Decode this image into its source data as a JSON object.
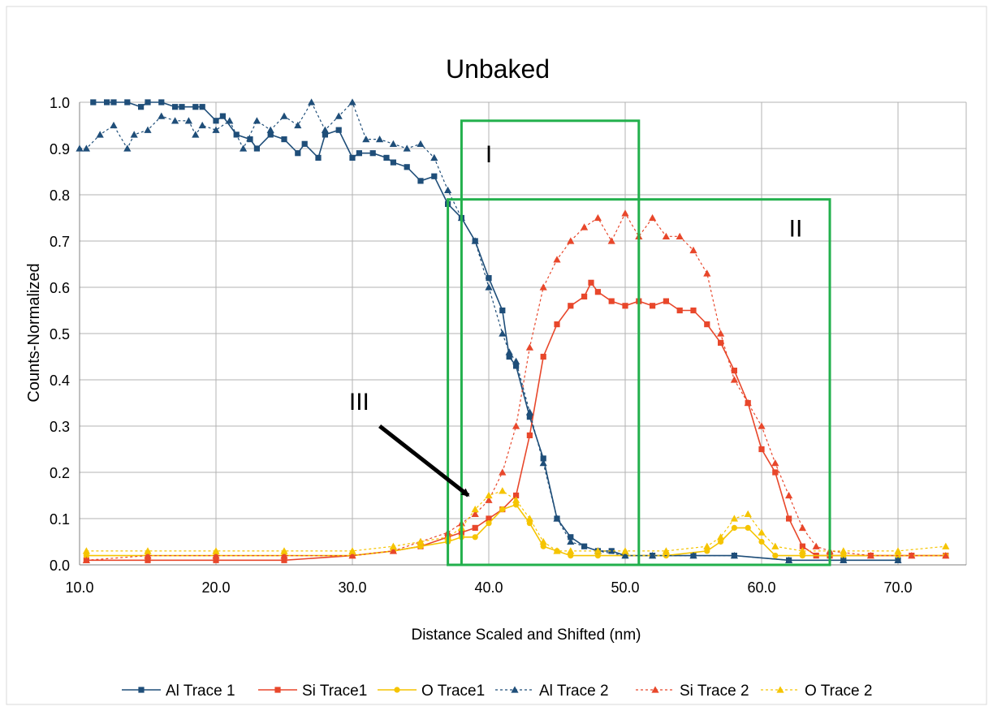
{
  "chart_data": {
    "type": "line",
    "title": "Unbaked",
    "xlabel": "Distance Scaled and Shifted (nm)",
    "ylabel": "Counts-Normalized",
    "xlim": [
      10.0,
      75.0
    ],
    "ylim": [
      0.0,
      1.0
    ],
    "xticks": [
      "10.0",
      "20.0",
      "30.0",
      "40.0",
      "50.0",
      "60.0",
      "70.0"
    ],
    "yticks": [
      "0.0",
      "0.1",
      "0.2",
      "0.3",
      "0.4",
      "0.5",
      "0.6",
      "0.7",
      "0.8",
      "0.9",
      "1.0"
    ],
    "grid": true,
    "legend_position": "bottom",
    "series": [
      {
        "name": "Al Trace 1",
        "color": "#1f4e79",
        "style": "solid",
        "marker": "square",
        "x": [
          11.0,
          12.0,
          12.5,
          13.5,
          14.5,
          15.0,
          16.0,
          17.0,
          17.5,
          18.5,
          19.0,
          20.0,
          20.5,
          21.5,
          22.5,
          23.0,
          24.0,
          25.0,
          26.0,
          26.5,
          27.5,
          28.0,
          29.0,
          30.0,
          30.5,
          31.5,
          32.5,
          33.0,
          34.0,
          35.0,
          36.0,
          37.0,
          38.0,
          39.0,
          40.0,
          41.0,
          41.5,
          42.0,
          43.0,
          44.0,
          45.0,
          46.0,
          47.0,
          48.0,
          49.0,
          50.0,
          52.0,
          55.0,
          58.0,
          62.0,
          66.0,
          70.0
        ],
        "y": [
          1.0,
          1.0,
          1.0,
          1.0,
          0.99,
          1.0,
          1.0,
          0.99,
          0.99,
          0.99,
          0.99,
          0.96,
          0.97,
          0.93,
          0.92,
          0.9,
          0.93,
          0.92,
          0.89,
          0.91,
          0.88,
          0.93,
          0.94,
          0.88,
          0.89,
          0.89,
          0.88,
          0.87,
          0.86,
          0.83,
          0.84,
          0.78,
          0.75,
          0.7,
          0.62,
          0.55,
          0.45,
          0.43,
          0.32,
          0.23,
          0.1,
          0.06,
          0.04,
          0.03,
          0.03,
          0.02,
          0.02,
          0.02,
          0.02,
          0.01,
          0.01,
          0.01
        ]
      },
      {
        "name": "Si Trace1",
        "color": "#e8472b",
        "style": "solid",
        "marker": "square",
        "x": [
          10.5,
          15.0,
          20.0,
          25.0,
          30.0,
          33.0,
          35.0,
          37.0,
          38.0,
          39.0,
          40.0,
          41.0,
          42.0,
          43.0,
          44.0,
          45.0,
          46.0,
          47.0,
          47.5,
          48.0,
          49.0,
          50.0,
          51.0,
          52.0,
          53.0,
          54.0,
          55.0,
          56.0,
          57.0,
          58.0,
          59.0,
          60.0,
          61.0,
          62.0,
          63.0,
          64.0,
          65.0,
          68.0,
          71.0,
          73.5
        ],
        "y": [
          0.01,
          0.01,
          0.01,
          0.01,
          0.02,
          0.03,
          0.04,
          0.06,
          0.07,
          0.08,
          0.1,
          0.12,
          0.15,
          0.28,
          0.45,
          0.52,
          0.56,
          0.58,
          0.61,
          0.59,
          0.57,
          0.56,
          0.57,
          0.56,
          0.57,
          0.55,
          0.55,
          0.52,
          0.48,
          0.42,
          0.35,
          0.25,
          0.2,
          0.1,
          0.04,
          0.02,
          0.02,
          0.02,
          0.02,
          0.02
        ]
      },
      {
        "name": "O Trace1",
        "color": "#f5c400",
        "style": "solid",
        "marker": "circle",
        "x": [
          10.5,
          15.0,
          20.0,
          25.0,
          30.0,
          33.0,
          35.0,
          37.0,
          38.0,
          39.0,
          40.0,
          41.0,
          42.0,
          43.0,
          44.0,
          45.0,
          46.0,
          48.0,
          50.0,
          53.0,
          56.0,
          57.0,
          58.0,
          59.0,
          60.0,
          61.0,
          63.0,
          66.0,
          70.0,
          73.5
        ],
        "y": [
          0.02,
          0.02,
          0.02,
          0.02,
          0.02,
          0.03,
          0.04,
          0.05,
          0.06,
          0.06,
          0.09,
          0.12,
          0.13,
          0.09,
          0.04,
          0.03,
          0.02,
          0.02,
          0.02,
          0.02,
          0.03,
          0.05,
          0.08,
          0.08,
          0.05,
          0.02,
          0.02,
          0.02,
          0.02,
          0.02
        ]
      },
      {
        "name": "Al Trace 2",
        "color": "#1f4e79",
        "style": "dashed",
        "marker": "triangle",
        "x": [
          10.0,
          10.5,
          11.5,
          12.5,
          13.5,
          14.0,
          15.0,
          16.0,
          17.0,
          18.0,
          18.5,
          19.0,
          20.0,
          21.0,
          22.0,
          23.0,
          24.0,
          25.0,
          26.0,
          27.0,
          28.0,
          29.0,
          30.0,
          31.0,
          32.0,
          33.0,
          34.0,
          35.0,
          36.0,
          37.0,
          38.0,
          39.0,
          40.0,
          41.0,
          41.5,
          42.0,
          43.0,
          44.0,
          45.0,
          46.0,
          48.0,
          50.0,
          52.0,
          55.0,
          58.0,
          62.0,
          66.0,
          70.0
        ],
        "y": [
          0.9,
          0.9,
          0.93,
          0.95,
          0.9,
          0.93,
          0.94,
          0.97,
          0.96,
          0.96,
          0.93,
          0.95,
          0.94,
          0.96,
          0.9,
          0.96,
          0.94,
          0.97,
          0.95,
          1.0,
          0.94,
          0.97,
          1.0,
          0.92,
          0.92,
          0.91,
          0.9,
          0.91,
          0.88,
          0.81,
          0.75,
          0.7,
          0.6,
          0.5,
          0.46,
          0.44,
          0.33,
          0.22,
          0.1,
          0.05,
          0.03,
          0.02,
          0.02,
          0.02,
          0.02,
          0.01,
          0.01,
          0.01
        ]
      },
      {
        "name": "Si Trace 2",
        "color": "#e8472b",
        "style": "dashed",
        "marker": "triangle",
        "x": [
          10.5,
          15.0,
          20.0,
          25.0,
          30.0,
          33.0,
          35.0,
          37.0,
          38.0,
          39.0,
          40.0,
          41.0,
          42.0,
          43.0,
          44.0,
          45.0,
          46.0,
          47.0,
          48.0,
          49.0,
          50.0,
          51.0,
          52.0,
          53.0,
          54.0,
          55.0,
          56.0,
          57.0,
          58.0,
          59.0,
          60.0,
          61.0,
          62.0,
          63.0,
          64.0,
          65.0,
          68.0,
          71.0,
          73.5
        ],
        "y": [
          0.01,
          0.02,
          0.02,
          0.02,
          0.02,
          0.03,
          0.05,
          0.07,
          0.09,
          0.11,
          0.14,
          0.2,
          0.3,
          0.47,
          0.6,
          0.66,
          0.7,
          0.73,
          0.75,
          0.7,
          0.76,
          0.71,
          0.75,
          0.71,
          0.71,
          0.68,
          0.63,
          0.5,
          0.4,
          0.35,
          0.3,
          0.22,
          0.15,
          0.08,
          0.04,
          0.03,
          0.02,
          0.02,
          0.02
        ]
      },
      {
        "name": "O Trace 2",
        "color": "#f5c400",
        "style": "dashed",
        "marker": "triangle",
        "x": [
          10.5,
          15.0,
          20.0,
          25.0,
          30.0,
          33.0,
          35.0,
          37.0,
          38.0,
          39.0,
          40.0,
          41.0,
          42.0,
          43.0,
          44.0,
          45.0,
          46.0,
          48.0,
          50.0,
          53.0,
          56.0,
          57.0,
          58.0,
          59.0,
          60.0,
          61.0,
          63.0,
          66.0,
          70.0,
          73.5
        ],
        "y": [
          0.03,
          0.03,
          0.03,
          0.03,
          0.03,
          0.04,
          0.05,
          0.06,
          0.08,
          0.12,
          0.15,
          0.16,
          0.14,
          0.1,
          0.05,
          0.03,
          0.03,
          0.03,
          0.03,
          0.03,
          0.04,
          0.06,
          0.1,
          0.11,
          0.07,
          0.04,
          0.03,
          0.03,
          0.03,
          0.04
        ]
      }
    ],
    "annotations": [
      {
        "label": "I",
        "kind": "box",
        "x": [
          38.0,
          51.0
        ],
        "y": [
          0.0,
          0.96
        ],
        "label_at": [
          40.0,
          0.87
        ]
      },
      {
        "label": "II",
        "kind": "box",
        "x": [
          37.0,
          65.0
        ],
        "y": [
          0.0,
          0.79
        ],
        "label_at": [
          62.5,
          0.71
        ]
      },
      {
        "label": "III",
        "kind": "arrow",
        "from": [
          32.0,
          0.3
        ],
        "to": [
          38.5,
          0.15
        ],
        "label_at": [
          30.5,
          0.335
        ]
      }
    ],
    "annotation_color": "#22b04c",
    "arrow_color": "#000000"
  }
}
